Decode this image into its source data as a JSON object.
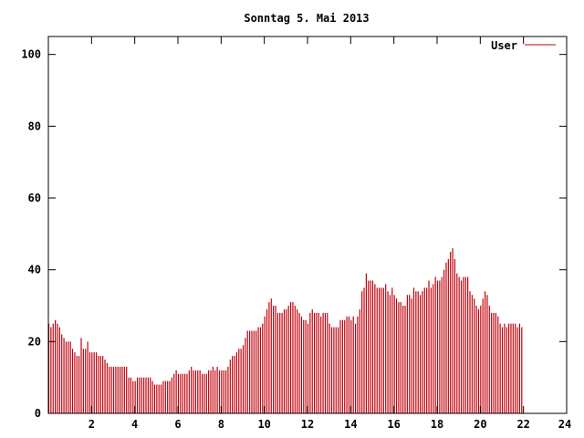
{
  "chart_data": {
    "type": "bar",
    "title": "Sonntag 5. Mai 2013",
    "xlabel": "",
    "ylabel": "",
    "xlim": [
      0,
      24
    ],
    "ylim": [
      0,
      105
    ],
    "x_ticks": [
      2,
      4,
      6,
      8,
      10,
      12,
      14,
      16,
      18,
      20,
      22,
      24
    ],
    "x_tick_labels": [
      "2",
      "4",
      "6",
      "8",
      "10",
      "12",
      "14",
      "16",
      "18",
      "20",
      "22",
      "24"
    ],
    "y_ticks": [
      0,
      20,
      40,
      60,
      80,
      100
    ],
    "y_tick_labels": [
      "0",
      "20",
      "40",
      "60",
      "80",
      "100"
    ],
    "grid": false,
    "legend_position": "top-right",
    "bar_color": "#c0000c",
    "series": [
      {
        "name": "User",
        "color": "#c0000c",
        "x_start": 0,
        "x_step": 0.1,
        "values": [
          25,
          24,
          25,
          26,
          25,
          24,
          22,
          21,
          20,
          20,
          20,
          18,
          17,
          16,
          16,
          21,
          18,
          18,
          20,
          17,
          17,
          17,
          17,
          16,
          16,
          16,
          15,
          14,
          13,
          13,
          13,
          13,
          13,
          13,
          13,
          13,
          13,
          10,
          10,
          9,
          9,
          10,
          10,
          10,
          10,
          10,
          10,
          10,
          9,
          8,
          8,
          8,
          8,
          9,
          9,
          9,
          9,
          10,
          11,
          12,
          11,
          11,
          11,
          11,
          11,
          12,
          13,
          12,
          12,
          12,
          12,
          11,
          11,
          11,
          12,
          12,
          13,
          12,
          13,
          12,
          12,
          12,
          12,
          13,
          15,
          16,
          16,
          17,
          18,
          18,
          19,
          21,
          23,
          23,
          23,
          23,
          23,
          24,
          24,
          25,
          27,
          29,
          31,
          32,
          30,
          30,
          28,
          28,
          28,
          29,
          29,
          30,
          31,
          31,
          30,
          29,
          28,
          27,
          26,
          26,
          25,
          28,
          29,
          28,
          28,
          28,
          27,
          28,
          28,
          28,
          25,
          24,
          24,
          24,
          24,
          26,
          26,
          26,
          27,
          27,
          26,
          27,
          25,
          27,
          29,
          34,
          35,
          39,
          37,
          37,
          37,
          36,
          35,
          35,
          35,
          35,
          36,
          34,
          33,
          35,
          33,
          32,
          31,
          31,
          30,
          30,
          33,
          33,
          32,
          35,
          34,
          34,
          33,
          34,
          35,
          35,
          37,
          35,
          36,
          38,
          37,
          37,
          38,
          40,
          42,
          43,
          45,
          46,
          43,
          39,
          38,
          37,
          38,
          38,
          38,
          34,
          33,
          32,
          30,
          29,
          30,
          32,
          34,
          33,
          30,
          28,
          28,
          28,
          27,
          25,
          24,
          25,
          24,
          25,
          25,
          25,
          25,
          24,
          25,
          24
        ]
      }
    ]
  }
}
